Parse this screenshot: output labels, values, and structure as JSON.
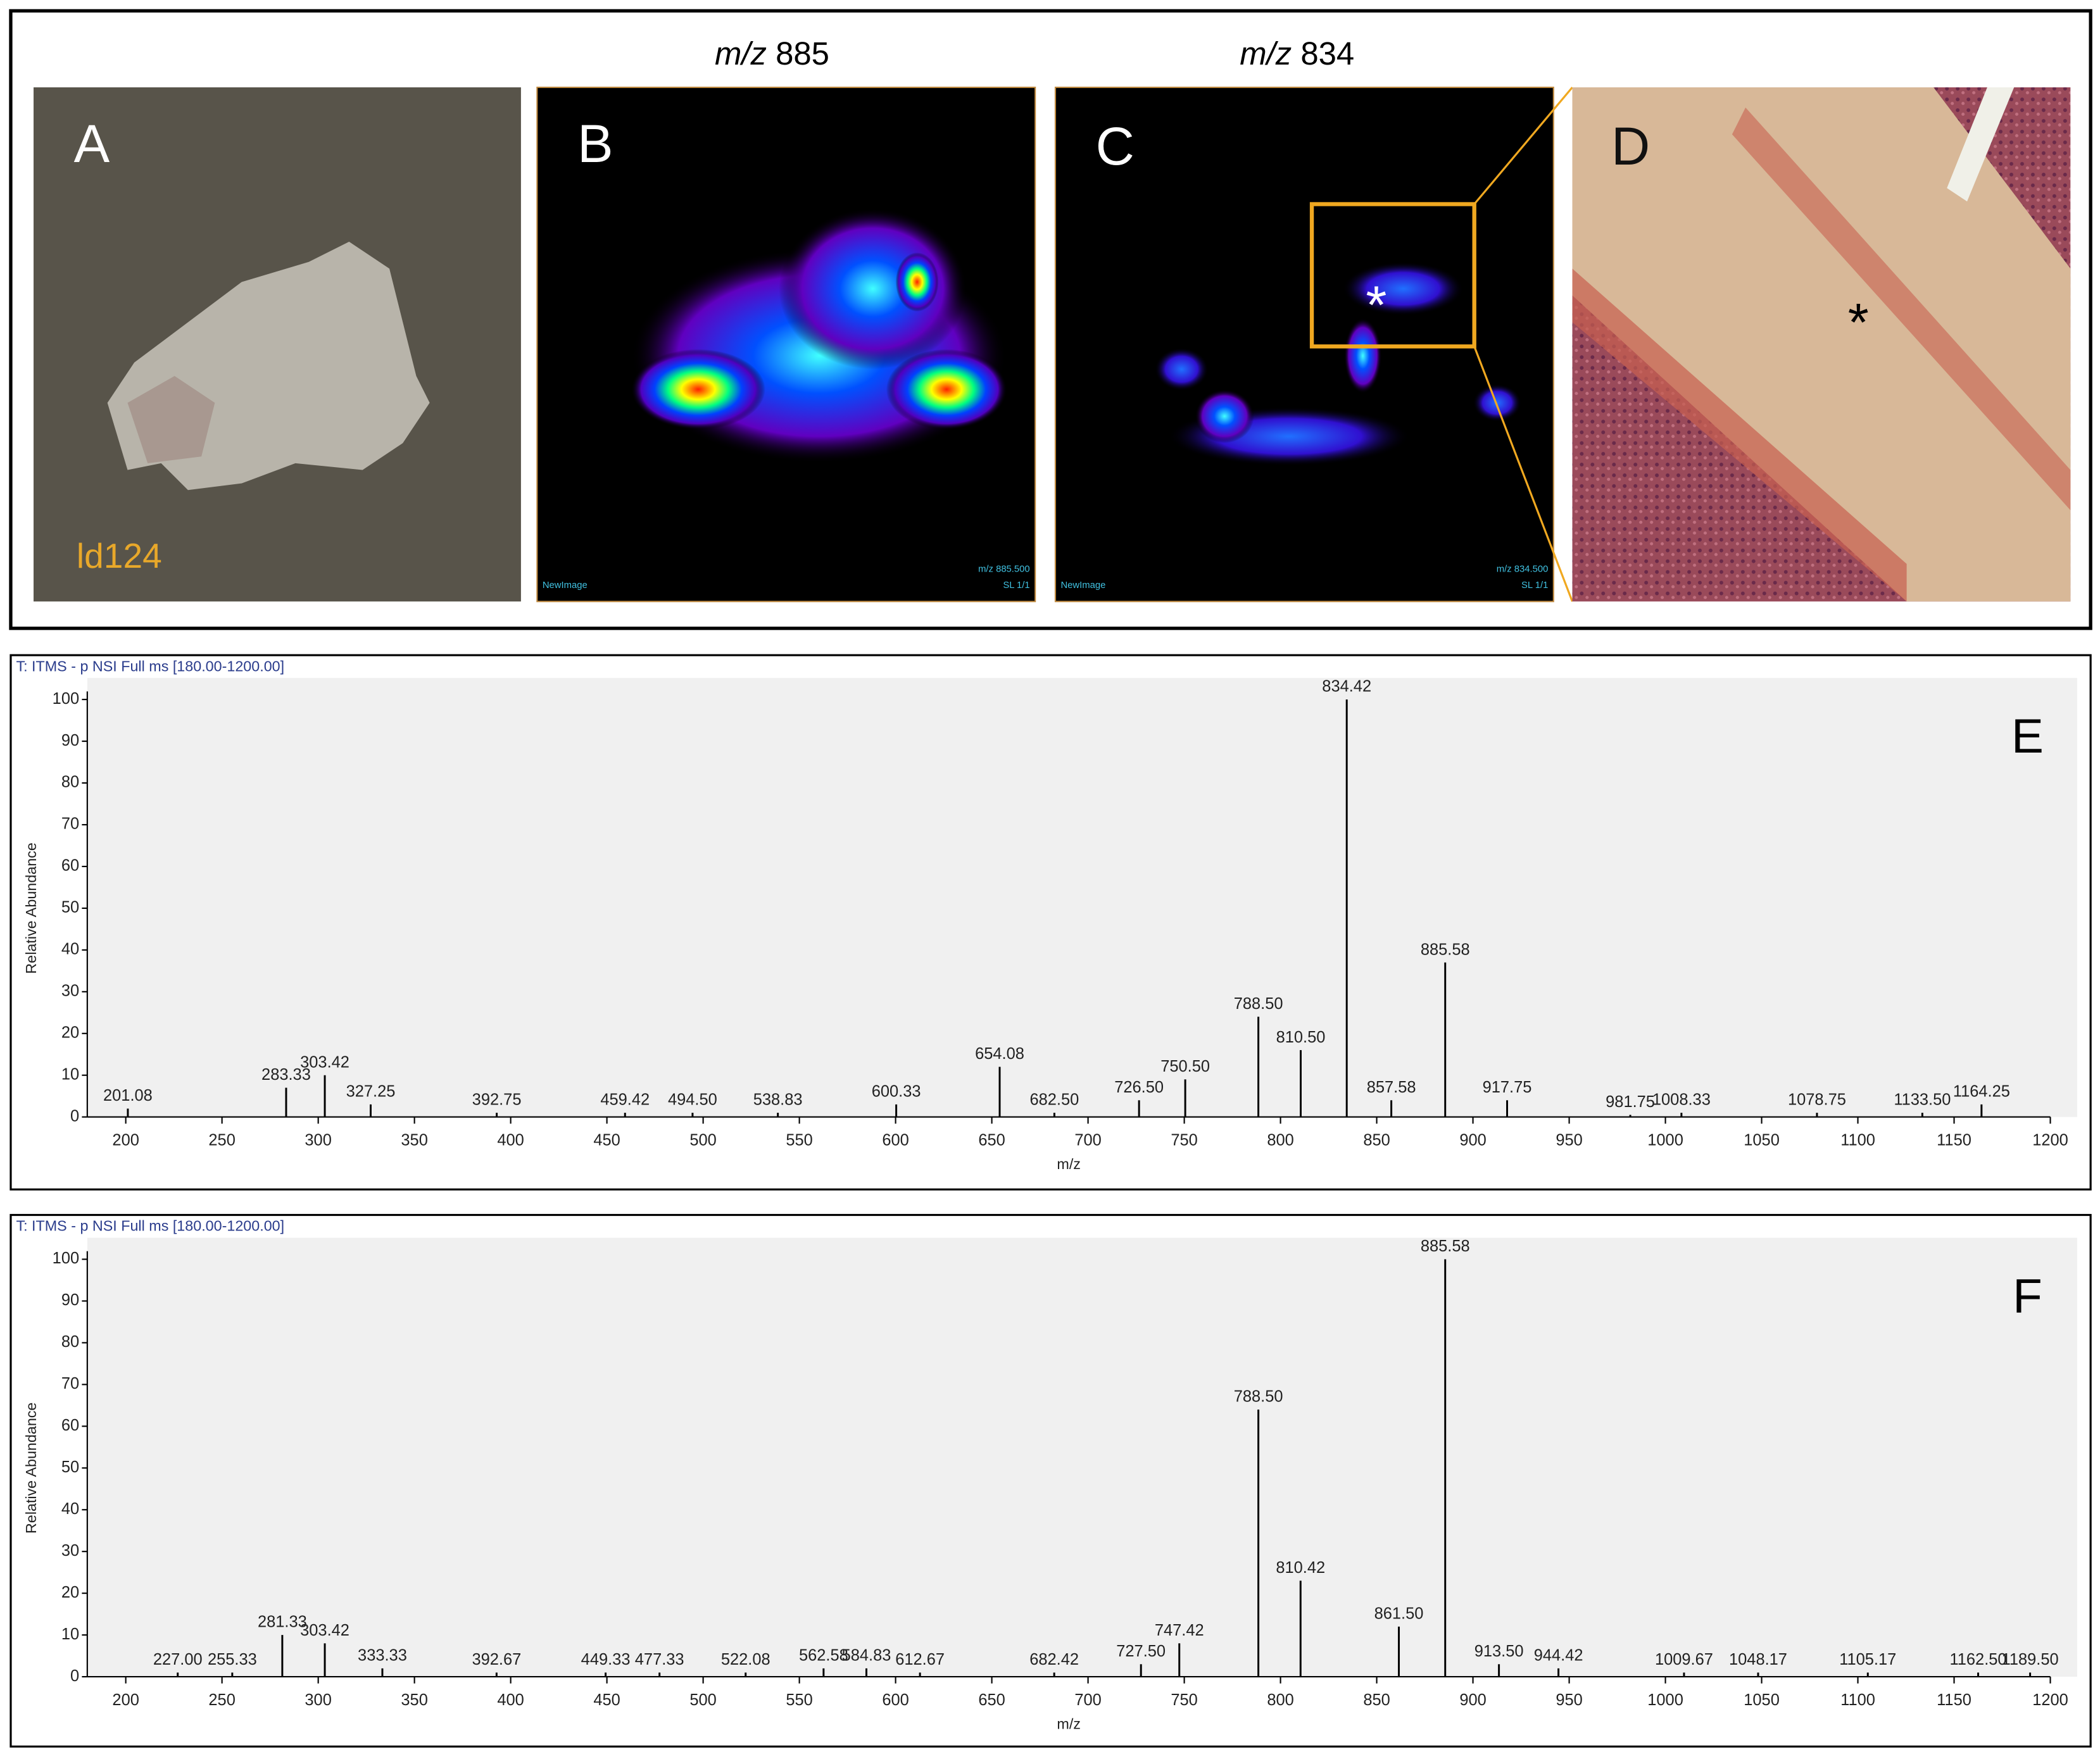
{
  "figure": {
    "panels": [
      {
        "letter": "A",
        "sample": "ld124"
      },
      {
        "letter": "B",
        "title_prefix": "m/z",
        "title_value": "885",
        "footer_left": "NewImage",
        "footer_right_1": "m/z 885.500",
        "footer_right_2": "SL 1/1"
      },
      {
        "letter": "C",
        "title_prefix": "m/z",
        "title_value": "834",
        "marker": "*",
        "footer_left": "NewImage",
        "footer_right_1": "m/z 834.500",
        "footer_right_2": "SL 1/1"
      },
      {
        "letter": "D",
        "marker": "*"
      }
    ]
  },
  "chart_data": [
    {
      "type": "stem",
      "header": "T: ITMS - p NSI Full ms [180.00-1200.00]",
      "panel_label": "E",
      "xlabel": "m/z",
      "ylabel": "Relative Abundance",
      "color": "#000000",
      "plot_background": "#f0f0f0",
      "x": [
        201.08,
        283.33,
        303.42,
        327.25,
        392.75,
        459.42,
        494.5,
        538.83,
        600.33,
        654.08,
        682.5,
        726.5,
        750.5,
        788.5,
        810.5,
        834.42,
        857.58,
        885.58,
        917.75,
        981.75,
        1008.33,
        1078.75,
        1133.5,
        1164.25
      ],
      "values": [
        2,
        7,
        10,
        3,
        1,
        1,
        1,
        1,
        3,
        12,
        1,
        4,
        9,
        24,
        16,
        100,
        4,
        37,
        4,
        0.5,
        1,
        1,
        1,
        3
      ],
      "peak_labels": [
        "201.08",
        "283.33",
        "303.42",
        "327.25",
        "392.75",
        "459.42",
        "494.50",
        "538.83",
        "600.33",
        "654.08",
        "682.50",
        "726.50",
        "750.50",
        "788.50",
        "810.50",
        "834.42",
        "857.58",
        "885.58",
        "917.75",
        "981.75",
        "1008.33",
        "1078.75",
        "1133.50",
        "1164.25"
      ],
      "xlim": [
        180,
        1200
      ],
      "xticks": [
        200,
        250,
        300,
        350,
        400,
        450,
        500,
        550,
        600,
        650,
        700,
        750,
        800,
        850,
        900,
        950,
        1000,
        1050,
        1100,
        1150,
        1200
      ],
      "ylim": [
        0,
        100
      ],
      "yticks": [
        0,
        10,
        20,
        30,
        40,
        50,
        60,
        70,
        80,
        90,
        100
      ]
    },
    {
      "type": "stem",
      "header": "T: ITMS - p NSI Full ms [180.00-1200.00]",
      "panel_label": "F",
      "xlabel": "m/z",
      "ylabel": "Relative Abundance",
      "color": "#000000",
      "plot_background": "#f0f0f0",
      "x": [
        227,
        255.33,
        281.33,
        303.42,
        333.33,
        392.67,
        449.33,
        477.33,
        522.08,
        562.58,
        584.83,
        612.67,
        682.42,
        727.5,
        747.42,
        788.5,
        810.42,
        861.5,
        885.58,
        913.5,
        944.42,
        1009.67,
        1048.17,
        1105.17,
        1162.5,
        1189.5
      ],
      "values": [
        1,
        1,
        10,
        8,
        2,
        1,
        1,
        1,
        1,
        2,
        2,
        1,
        1,
        3,
        8,
        64,
        23,
        12,
        100,
        3,
        2,
        1,
        1,
        1,
        1,
        1
      ],
      "peak_labels": [
        "227.00",
        "255.33",
        "281.33",
        "303.42",
        "333.33",
        "392.67",
        "449.33",
        "477.33",
        "522.08",
        "562.58",
        "584.83",
        "612.67",
        "682.42",
        "727.50",
        "747.42",
        "788.50",
        "810.42",
        "861.50",
        "885.58",
        "913.50",
        "944.42",
        "1009.67",
        "1048.17",
        "1105.17",
        "1162.50",
        "1189.50"
      ],
      "xlim": [
        180,
        1200
      ],
      "xticks": [
        200,
        250,
        300,
        350,
        400,
        450,
        500,
        550,
        600,
        650,
        700,
        750,
        800,
        850,
        900,
        950,
        1000,
        1050,
        1100,
        1150,
        1200
      ],
      "ylim": [
        0,
        100
      ],
      "yticks": [
        0,
        10,
        20,
        30,
        40,
        50,
        60,
        70,
        80,
        90,
        100
      ]
    }
  ]
}
